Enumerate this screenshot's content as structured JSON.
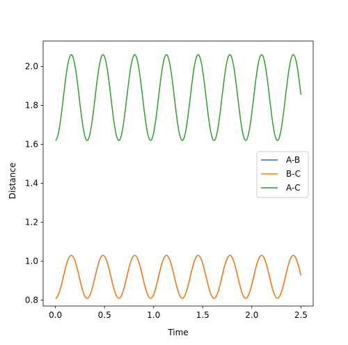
{
  "chart_data": {
    "type": "line",
    "title": "",
    "xlabel": "Time",
    "ylabel": "Distance",
    "xlim": [
      -0.125,
      2.625
    ],
    "ylim": [
      0.77,
      2.13
    ],
    "xticks": [
      0.0,
      0.5,
      1.0,
      1.5,
      2.0,
      2.5
    ],
    "xtick_labels": [
      "0.0",
      "0.5",
      "1.0",
      "1.5",
      "2.0",
      "2.5"
    ],
    "yticks": [
      0.8,
      1.0,
      1.2,
      1.4,
      1.6,
      1.8,
      2.0
    ],
    "ytick_labels": [
      "0.8",
      "1.0",
      "1.2",
      "1.4",
      "1.6",
      "1.8",
      "2.0"
    ],
    "grid": false,
    "legend": "center-right",
    "oscillation": {
      "period": 0.323,
      "t_start": 0.0,
      "t_end": 2.5,
      "samples": 501
    },
    "series": [
      {
        "name": "A-B",
        "color": "#1f77b4",
        "min": 0.81,
        "max": 1.03
      },
      {
        "name": "B-C",
        "color": "#ff7f0e",
        "min": 0.81,
        "max": 1.03
      },
      {
        "name": "A-C",
        "color": "#2ca02c",
        "min": 1.62,
        "max": 2.06
      }
    ]
  }
}
